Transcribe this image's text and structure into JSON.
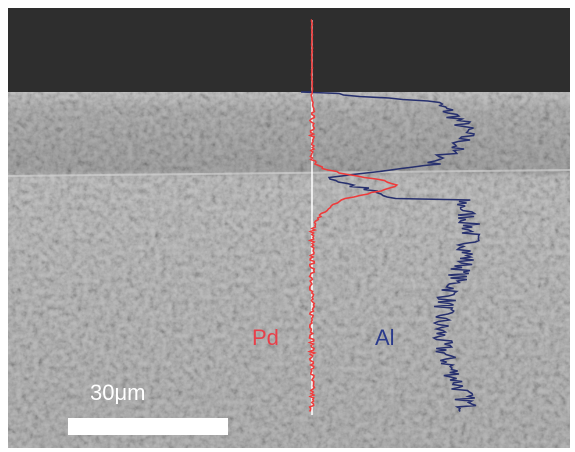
{
  "labels": {
    "pd": "Pd",
    "al": "Al",
    "scale_bar": "30μm"
  }
}
